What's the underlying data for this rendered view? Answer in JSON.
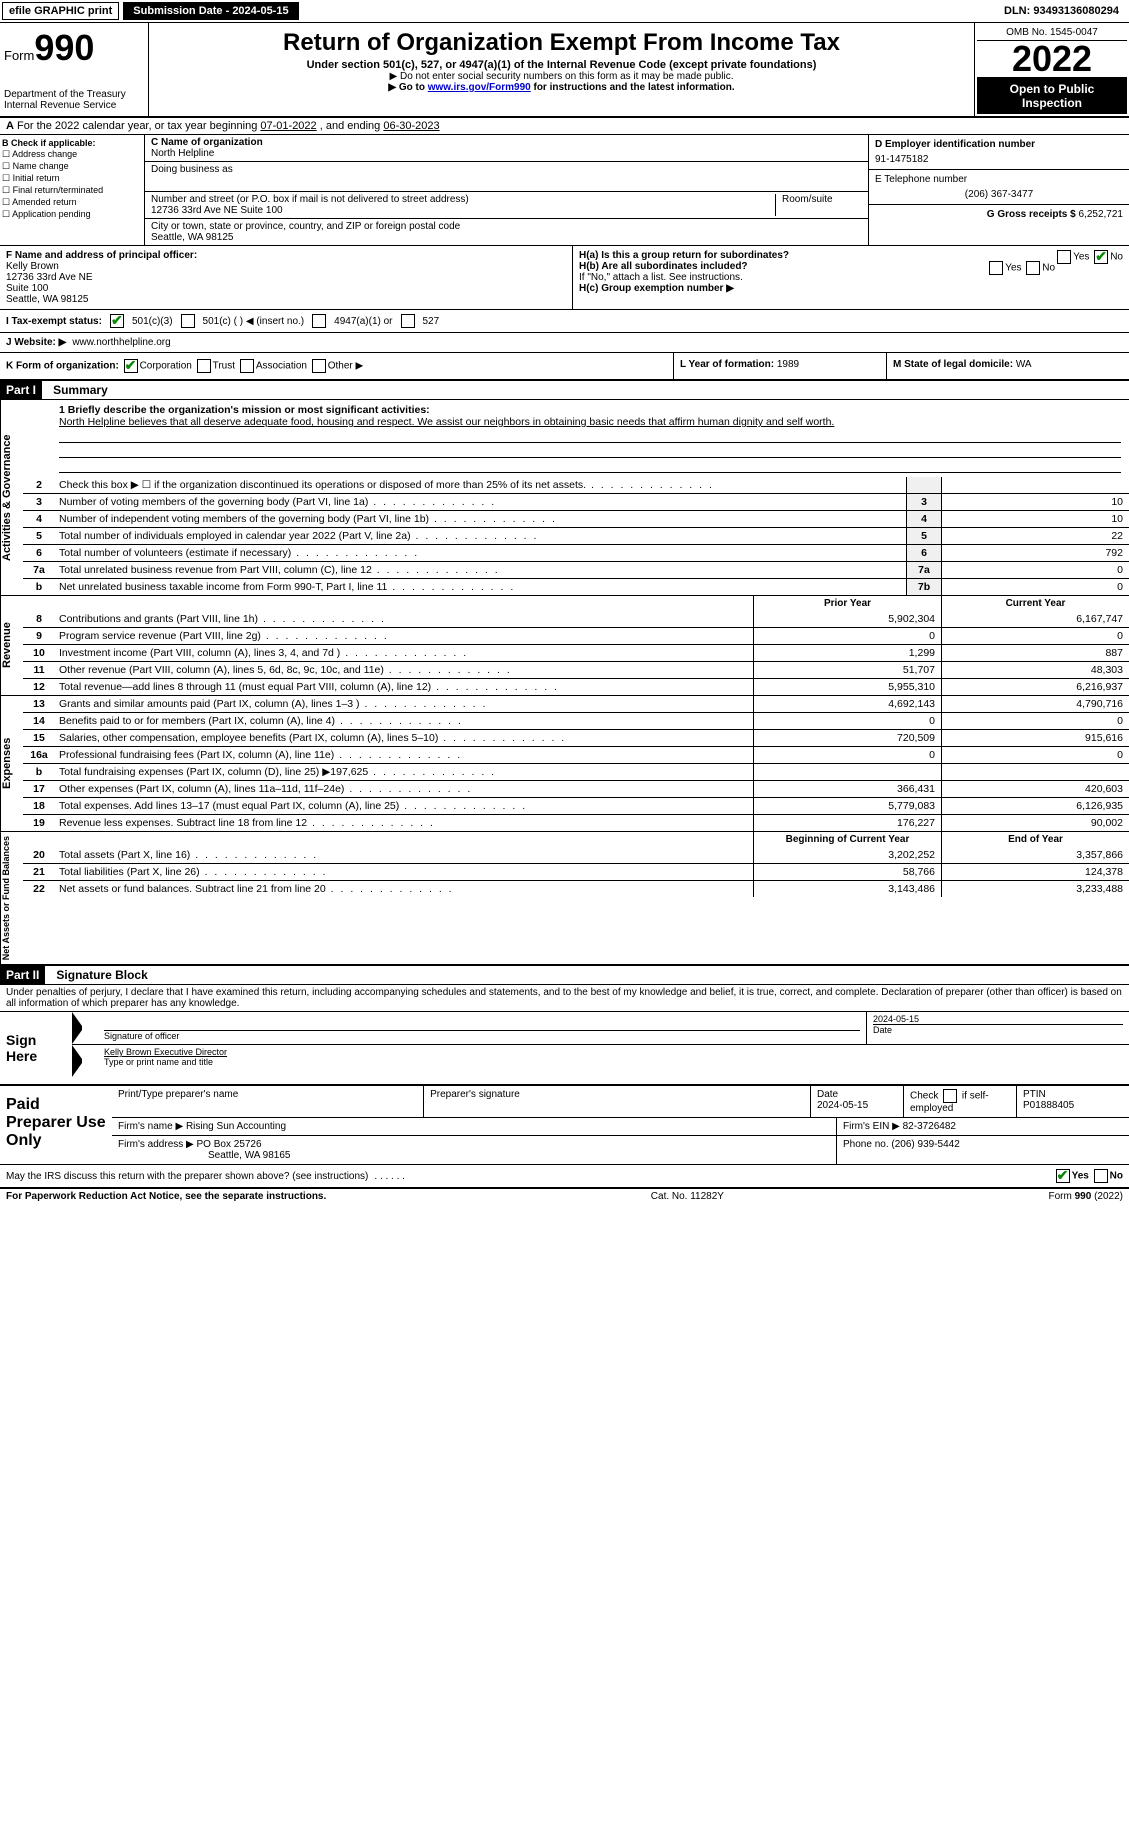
{
  "topbar": {
    "efile_label": "efile GRAPHIC print",
    "submission_btn": "Submission Date - 2024-05-15",
    "dln": "DLN: 93493136080294"
  },
  "header": {
    "form_prefix": "Form",
    "form_number": "990",
    "dept": "Department of the Treasury",
    "irs": "Internal Revenue Service",
    "title": "Return of Organization Exempt From Income Tax",
    "subtitle": "Under section 501(c), 527, or 4947(a)(1) of the Internal Revenue Code (except private foundations)",
    "note1": "▶ Do not enter social security numbers on this form as it may be made public.",
    "note2_pre": "▶ Go to ",
    "note2_link": "www.irs.gov/Form990",
    "note2_post": " for instructions and the latest information.",
    "omb": "OMB No. 1545-0047",
    "year": "2022",
    "open": "Open to Public Inspection"
  },
  "period": {
    "text_a": "For the 2022 calendar year, or tax year beginning ",
    "begin": "07-01-2022",
    "text_b": " , and ending ",
    "end": "06-30-2023"
  },
  "box_b": {
    "label": "B Check if applicable:",
    "opts": [
      "Address change",
      "Name change",
      "Initial return",
      "Final return/terminated",
      "Amended return",
      "Application pending"
    ]
  },
  "box_c": {
    "label_c": "C Name of organization",
    "org_name": "North Helpline",
    "dba_label": "Doing business as",
    "street_label": "Number and street (or P.O. box if mail is not delivered to street address)",
    "room_label": "Room/suite",
    "street": "12736 33rd Ave NE Suite 100",
    "city_label": "City or town, state or province, country, and ZIP or foreign postal code",
    "city": "Seattle, WA  98125"
  },
  "box_d": {
    "label": "D Employer identification number",
    "ein": "91-1475182",
    "tel_label": "E Telephone number",
    "tel": "(206) 367-3477",
    "gross_label": "G Gross receipts $ ",
    "gross": "6,252,721"
  },
  "box_f": {
    "label": "F  Name and address of principal officer:",
    "name": "Kelly Brown",
    "addr1": "12736 33rd Ave NE",
    "addr2": "Suite 100",
    "addr3": "Seattle, WA  98125"
  },
  "box_h": {
    "ha_label": "H(a)  Is this a group return for subordinates?",
    "ha_yes": "Yes",
    "ha_no": "No",
    "hb_label": "H(b)  Are all subordinates included?",
    "hb_yes": "Yes",
    "hb_no": "No",
    "hb_note": "If \"No,\" attach a list. See instructions.",
    "hc_label": "H(c)  Group exemption number ▶"
  },
  "line_i": {
    "label": "I  Tax-exempt status:",
    "opt1": "501(c)(3)",
    "opt2": "501(c) (  ) ◀ (insert no.)",
    "opt3": "4947(a)(1) or",
    "opt4": "527"
  },
  "line_j": {
    "label": "J  Website: ▶",
    "url": "www.northhelpline.org"
  },
  "line_k": {
    "label": "K Form of organization:",
    "opts": [
      "Corporation",
      "Trust",
      "Association",
      "Other ▶"
    ],
    "l_label": "L Year of formation: ",
    "l_val": "1989",
    "m_label": "M State of legal domicile: ",
    "m_val": "WA"
  },
  "parts": {
    "p1": "Part I",
    "p1_title": "Summary",
    "p2": "Part II",
    "p2_title": "Signature Block"
  },
  "mission": {
    "q": "1  Briefly describe the organization's mission or most significant activities:",
    "text": "North Helpline believes that all deserve adequate food, housing and respect. We assist our neighbors in obtaining basic needs that affirm human dignity and self worth."
  },
  "side_labels": {
    "ag": "Activities & Governance",
    "rev": "Revenue",
    "exp": "Expenses",
    "net": "Net Assets or Fund Balances"
  },
  "governance_rows": [
    {
      "num": "2",
      "desc": "Check this box ▶ ☐ if the organization discontinued its operations or disposed of more than 25% of its net assets.",
      "box": "",
      "v1": "",
      "v2": ""
    },
    {
      "num": "3",
      "desc": "Number of voting members of the governing body (Part VI, line 1a)",
      "box": "3",
      "v2": "10"
    },
    {
      "num": "4",
      "desc": "Number of independent voting members of the governing body (Part VI, line 1b)",
      "box": "4",
      "v2": "10"
    },
    {
      "num": "5",
      "desc": "Total number of individuals employed in calendar year 2022 (Part V, line 2a)",
      "box": "5",
      "v2": "22"
    },
    {
      "num": "6",
      "desc": "Total number of volunteers (estimate if necessary)",
      "box": "6",
      "v2": "792"
    },
    {
      "num": "7a",
      "desc": "Total unrelated business revenue from Part VIII, column (C), line 12",
      "box": "7a",
      "v2": "0"
    },
    {
      "num": "b",
      "desc": "Net unrelated business taxable income from Form 990-T, Part I, line 11",
      "box": "7b",
      "v2": "0"
    }
  ],
  "year_headers": {
    "prior": "Prior Year",
    "current": "Current Year"
  },
  "revenue_rows": [
    {
      "num": "8",
      "desc": "Contributions and grants (Part VIII, line 1h)",
      "v1": "5,902,304",
      "v2": "6,167,747"
    },
    {
      "num": "9",
      "desc": "Program service revenue (Part VIII, line 2g)",
      "v1": "0",
      "v2": "0"
    },
    {
      "num": "10",
      "desc": "Investment income (Part VIII, column (A), lines 3, 4, and 7d )",
      "v1": "1,299",
      "v2": "887"
    },
    {
      "num": "11",
      "desc": "Other revenue (Part VIII, column (A), lines 5, 6d, 8c, 9c, 10c, and 11e)",
      "v1": "51,707",
      "v2": "48,303"
    },
    {
      "num": "12",
      "desc": "Total revenue—add lines 8 through 11 (must equal Part VIII, column (A), line 12)",
      "v1": "5,955,310",
      "v2": "6,216,937"
    }
  ],
  "expense_rows": [
    {
      "num": "13",
      "desc": "Grants and similar amounts paid (Part IX, column (A), lines 1–3 )",
      "v1": "4,692,143",
      "v2": "4,790,716"
    },
    {
      "num": "14",
      "desc": "Benefits paid to or for members (Part IX, column (A), line 4)",
      "v1": "0",
      "v2": "0"
    },
    {
      "num": "15",
      "desc": "Salaries, other compensation, employee benefits (Part IX, column (A), lines 5–10)",
      "v1": "720,509",
      "v2": "915,616"
    },
    {
      "num": "16a",
      "desc": "Professional fundraising fees (Part IX, column (A), line 11e)",
      "v1": "0",
      "v2": "0"
    },
    {
      "num": "b",
      "desc": "Total fundraising expenses (Part IX, column (D), line 25) ▶197,625",
      "v1": "",
      "v2": ""
    },
    {
      "num": "17",
      "desc": "Other expenses (Part IX, column (A), lines 11a–11d, 11f–24e)",
      "v1": "366,431",
      "v2": "420,603"
    },
    {
      "num": "18",
      "desc": "Total expenses. Add lines 13–17 (must equal Part IX, column (A), line 25)",
      "v1": "5,779,083",
      "v2": "6,126,935"
    },
    {
      "num": "19",
      "desc": "Revenue less expenses. Subtract line 18 from line 12",
      "v1": "176,227",
      "v2": "90,002"
    }
  ],
  "net_headers": {
    "begin": "Beginning of Current Year",
    "end": "End of Year"
  },
  "net_rows": [
    {
      "num": "20",
      "desc": "Total assets (Part X, line 16)",
      "v1": "3,202,252",
      "v2": "3,357,866"
    },
    {
      "num": "21",
      "desc": "Total liabilities (Part X, line 26)",
      "v1": "58,766",
      "v2": "124,378"
    },
    {
      "num": "22",
      "desc": "Net assets or fund balances. Subtract line 21 from line 20",
      "v1": "3,143,486",
      "v2": "3,233,488"
    }
  ],
  "sig": {
    "intro": "Under penalties of perjury, I declare that I have examined this return, including accompanying schedules and statements, and to the best of my knowledge and belief, it is true, correct, and complete. Declaration of preparer (other than officer) is based on all information of which preparer has any knowledge.",
    "sign_here": "Sign Here",
    "sig_officer": "Signature of officer",
    "date_label": "Date",
    "date_val": "2024-05-15",
    "name_title": "Kelly Brown  Executive Director",
    "name_label": "Type or print name and title"
  },
  "prep": {
    "label": "Paid Preparer Use Only",
    "h1": "Print/Type preparer's name",
    "h2": "Preparer's signature",
    "h3": "Date",
    "date": "2024-05-15",
    "h4_a": "Check",
    "h4_b": "if self-employed",
    "h5": "PTIN",
    "ptin": "P01888405",
    "firm_name_label": "Firm's name    ▶",
    "firm_name": "Rising Sun Accounting",
    "firm_ein_label": "Firm's EIN ▶",
    "firm_ein": "82-3726482",
    "firm_addr_label": "Firm's address ▶",
    "firm_addr1": "PO Box 25726",
    "firm_addr2": "Seattle, WA  98165",
    "phone_label": "Phone no.",
    "phone": "(206) 939-5442"
  },
  "discuss": {
    "q": "May the IRS discuss this return with the preparer shown above? (see instructions)",
    "yes": "Yes",
    "no": "No"
  },
  "footer": {
    "left": "For Paperwork Reduction Act Notice, see the separate instructions.",
    "mid": "Cat. No. 11282Y",
    "right_a": "Form ",
    "right_b": "990",
    "right_c": " (2022)"
  }
}
